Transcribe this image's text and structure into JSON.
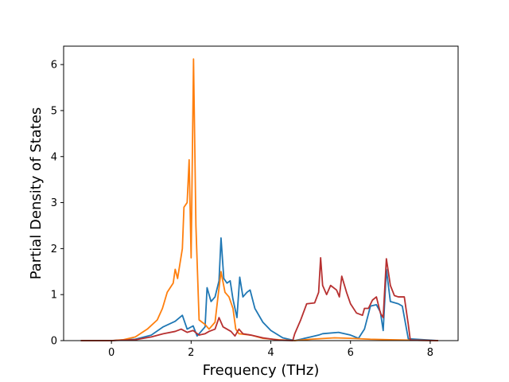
{
  "chart_data": {
    "type": "line",
    "xlabel": "Frequency (THz)",
    "ylabel": "Partial Density of States",
    "xlim": [
      -1.2,
      8.7
    ],
    "ylim": [
      0,
      6.4
    ],
    "xticks": [
      0,
      2,
      4,
      6,
      8
    ],
    "yticks": [
      0,
      1,
      2,
      3,
      4,
      5,
      6
    ],
    "grid": false,
    "legend": "none",
    "series": [
      {
        "color": "#1f77b4",
        "points": [
          [
            -0.77,
            0
          ],
          [
            0,
            0
          ],
          [
            0.6,
            0.03
          ],
          [
            1.0,
            0.12
          ],
          [
            1.3,
            0.3
          ],
          [
            1.6,
            0.42
          ],
          [
            1.78,
            0.55
          ],
          [
            1.9,
            0.25
          ],
          [
            2.05,
            0.32
          ],
          [
            2.15,
            0.1
          ],
          [
            2.35,
            0.3
          ],
          [
            2.4,
            1.15
          ],
          [
            2.5,
            0.85
          ],
          [
            2.6,
            0.95
          ],
          [
            2.7,
            1.3
          ],
          [
            2.75,
            2.23
          ],
          [
            2.82,
            1.35
          ],
          [
            2.9,
            1.25
          ],
          [
            2.98,
            1.3
          ],
          [
            3.05,
            0.9
          ],
          [
            3.15,
            0.5
          ],
          [
            3.22,
            1.38
          ],
          [
            3.3,
            0.95
          ],
          [
            3.4,
            1.05
          ],
          [
            3.48,
            1.1
          ],
          [
            3.6,
            0.7
          ],
          [
            3.8,
            0.4
          ],
          [
            4.0,
            0.22
          ],
          [
            4.3,
            0.06
          ],
          [
            4.6,
            0
          ],
          [
            5.0,
            0.08
          ],
          [
            5.2,
            0.12
          ],
          [
            5.3,
            0.15
          ],
          [
            5.7,
            0.18
          ],
          [
            6.0,
            0.12
          ],
          [
            6.2,
            0.05
          ],
          [
            6.35,
            0.25
          ],
          [
            6.5,
            0.75
          ],
          [
            6.65,
            0.78
          ],
          [
            6.75,
            0.62
          ],
          [
            6.82,
            0.22
          ],
          [
            6.9,
            1.55
          ],
          [
            7.0,
            0.85
          ],
          [
            7.2,
            0.8
          ],
          [
            7.3,
            0.75
          ],
          [
            7.45,
            0.04
          ],
          [
            8.2,
            0
          ]
        ]
      },
      {
        "color": "#ff7f0e",
        "points": [
          [
            -0.77,
            0
          ],
          [
            0,
            0
          ],
          [
            0.3,
            0.02
          ],
          [
            0.6,
            0.08
          ],
          [
            0.9,
            0.25
          ],
          [
            1.15,
            0.45
          ],
          [
            1.28,
            0.7
          ],
          [
            1.4,
            1.05
          ],
          [
            1.55,
            1.25
          ],
          [
            1.6,
            1.55
          ],
          [
            1.66,
            1.35
          ],
          [
            1.78,
            2.0
          ],
          [
            1.82,
            2.9
          ],
          [
            1.9,
            3.0
          ],
          [
            1.95,
            3.93
          ],
          [
            2.0,
            1.8
          ],
          [
            2.06,
            6.12
          ],
          [
            2.12,
            2.5
          ],
          [
            2.2,
            0.45
          ],
          [
            2.35,
            0.35
          ],
          [
            2.45,
            0.25
          ],
          [
            2.6,
            0.4
          ],
          [
            2.68,
            1.0
          ],
          [
            2.75,
            1.5
          ],
          [
            2.85,
            1.05
          ],
          [
            2.95,
            0.95
          ],
          [
            3.05,
            0.7
          ],
          [
            3.12,
            0.25
          ],
          [
            3.2,
            0.15
          ],
          [
            3.5,
            0.12
          ],
          [
            3.8,
            0.05
          ],
          [
            4.2,
            0.02
          ],
          [
            4.6,
            0
          ],
          [
            5.0,
            0.03
          ],
          [
            5.6,
            0.06
          ],
          [
            6.0,
            0.05
          ],
          [
            6.5,
            0.03
          ],
          [
            7.0,
            0.02
          ],
          [
            7.5,
            0.01
          ],
          [
            8.2,
            0
          ]
        ]
      },
      {
        "color": "#b73030",
        "points": [
          [
            -0.77,
            0
          ],
          [
            0,
            0
          ],
          [
            0.6,
            0.02
          ],
          [
            1.0,
            0.08
          ],
          [
            1.3,
            0.15
          ],
          [
            1.6,
            0.2
          ],
          [
            1.75,
            0.25
          ],
          [
            1.9,
            0.18
          ],
          [
            2.05,
            0.22
          ],
          [
            2.2,
            0.12
          ],
          [
            2.35,
            0.15
          ],
          [
            2.45,
            0.2
          ],
          [
            2.6,
            0.25
          ],
          [
            2.7,
            0.5
          ],
          [
            2.8,
            0.3
          ],
          [
            3.0,
            0.2
          ],
          [
            3.1,
            0.1
          ],
          [
            3.2,
            0.25
          ],
          [
            3.3,
            0.15
          ],
          [
            3.5,
            0.12
          ],
          [
            3.8,
            0.06
          ],
          [
            4.2,
            0.01
          ],
          [
            4.55,
            0
          ],
          [
            4.6,
            0.15
          ],
          [
            4.75,
            0.45
          ],
          [
            4.9,
            0.8
          ],
          [
            5.1,
            0.82
          ],
          [
            5.2,
            1.05
          ],
          [
            5.25,
            1.8
          ],
          [
            5.3,
            1.2
          ],
          [
            5.4,
            1.0
          ],
          [
            5.5,
            1.2
          ],
          [
            5.65,
            1.1
          ],
          [
            5.72,
            0.95
          ],
          [
            5.78,
            1.4
          ],
          [
            5.9,
            1.05
          ],
          [
            6.0,
            0.8
          ],
          [
            6.15,
            0.6
          ],
          [
            6.3,
            0.55
          ],
          [
            6.35,
            0.7
          ],
          [
            6.45,
            0.7
          ],
          [
            6.55,
            0.88
          ],
          [
            6.65,
            0.95
          ],
          [
            6.75,
            0.6
          ],
          [
            6.82,
            0.5
          ],
          [
            6.9,
            1.78
          ],
          [
            7.0,
            1.2
          ],
          [
            7.1,
            0.98
          ],
          [
            7.2,
            0.95
          ],
          [
            7.35,
            0.95
          ],
          [
            7.45,
            0.35
          ],
          [
            7.5,
            0.01
          ],
          [
            8.2,
            0
          ]
        ]
      }
    ]
  }
}
